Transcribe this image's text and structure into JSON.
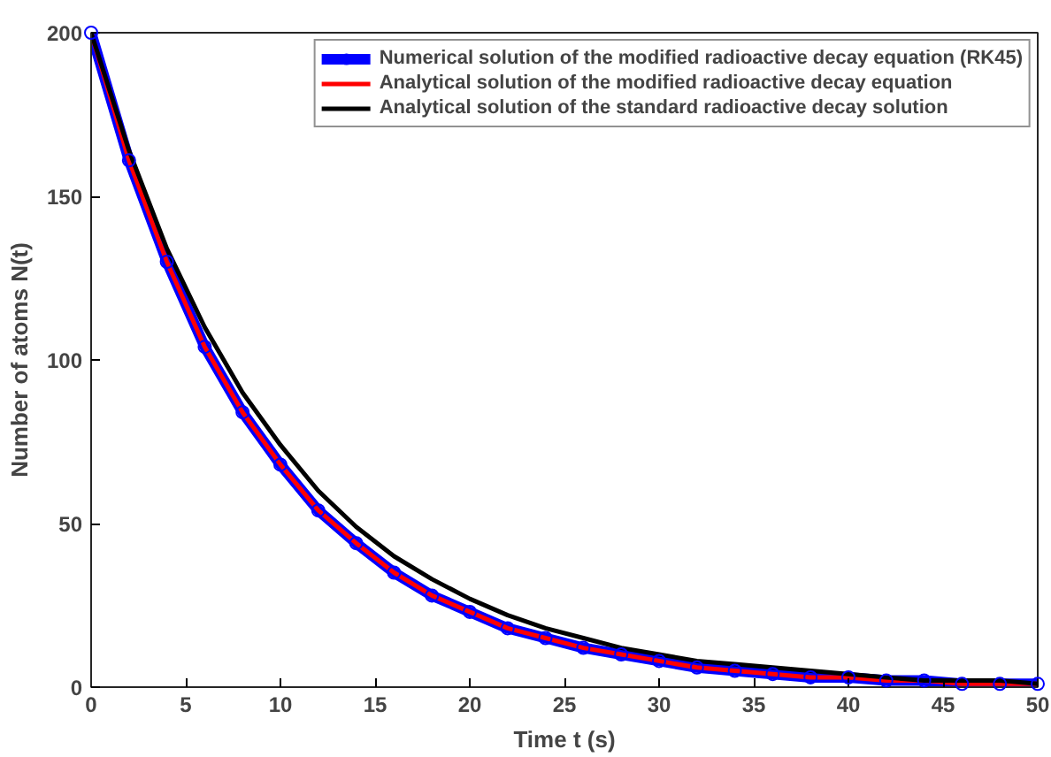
{
  "chart_data": {
    "type": "line",
    "xlabel": "Time t (s)",
    "ylabel": "Number of atoms N(t)",
    "x": [
      0,
      2,
      4,
      6,
      8,
      10,
      12,
      14,
      16,
      18,
      20,
      22,
      24,
      26,
      28,
      30,
      32,
      34,
      36,
      38,
      40,
      42,
      44,
      46,
      48,
      50
    ],
    "xlim": [
      0,
      50
    ],
    "ylim": [
      0,
      200
    ],
    "xticks": [
      0,
      5,
      10,
      15,
      20,
      25,
      30,
      35,
      40,
      45,
      50
    ],
    "yticks": [
      0,
      50,
      100,
      150,
      200
    ],
    "grid": false,
    "legend": "top right",
    "series": [
      {
        "name": "Numerical solution of the modified radioactive decay equation (RK45)",
        "color": "#0000ff",
        "marker": "circle",
        "values": [
          200,
          161,
          130,
          104,
          84,
          68,
          54,
          44,
          35,
          28,
          23,
          18,
          15,
          12,
          10,
          8,
          6,
          5,
          4,
          3,
          3,
          2,
          2,
          1,
          1,
          1
        ]
      },
      {
        "name": "Analytical solution of the modified radioactive decay equation",
        "color": "#ff0000",
        "marker": "none",
        "values": [
          200,
          161,
          130,
          104,
          84,
          68,
          54,
          44,
          35,
          28,
          23,
          18,
          15,
          12,
          10,
          8,
          6,
          5,
          4,
          3,
          3,
          2,
          2,
          1,
          1,
          1
        ]
      },
      {
        "name": "Analytical solution of the standard radioactive decay solution",
        "color": "#000000",
        "marker": "none",
        "values": [
          200,
          164,
          134,
          110,
          90,
          74,
          60,
          49,
          40,
          33,
          27,
          22,
          18,
          15,
          12,
          10,
          8,
          7,
          6,
          5,
          4,
          3,
          2,
          2,
          2,
          1
        ]
      }
    ]
  }
}
